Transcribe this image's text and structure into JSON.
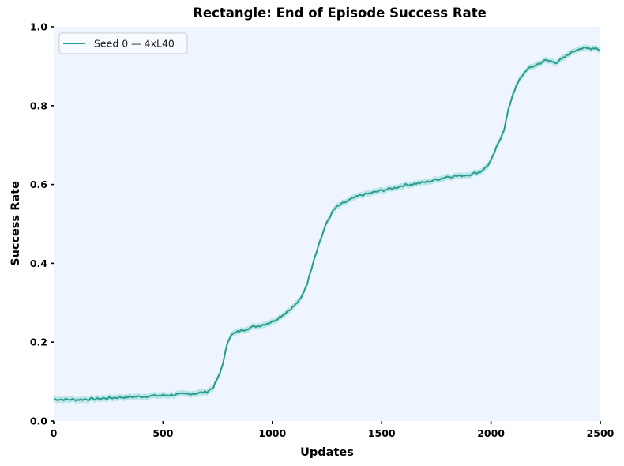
{
  "chart_data": {
    "type": "line",
    "title": "Rectangle: End of Episode Success Rate",
    "xlabel": "Updates",
    "ylabel": "Success Rate",
    "xlim": [
      0,
      2500
    ],
    "ylim": [
      0.0,
      1.0
    ],
    "xticks": [
      0,
      500,
      1000,
      1500,
      2000,
      2500
    ],
    "xtick_labels": [
      "0",
      "500",
      "1000",
      "1500",
      "2000",
      "2500"
    ],
    "yticks": [
      0.0,
      0.2,
      0.4,
      0.6,
      0.8,
      1.0
    ],
    "ytick_labels": [
      "0.0",
      "0.2",
      "0.4",
      "0.6",
      "0.8",
      "1.0"
    ],
    "grid": false,
    "legend_position": "upper left",
    "background_color": "#eff5fe",
    "series": [
      {
        "name": "Seed 0 — 4xL40",
        "color": "#2a9d8f",
        "band_color": "#8fd9d3",
        "x": [
          0,
          100,
          200,
          300,
          400,
          500,
          600,
          650,
          700,
          730,
          760,
          780,
          795,
          810,
          850,
          900,
          950,
          1000,
          1050,
          1100,
          1130,
          1160,
          1190,
          1220,
          1250,
          1280,
          1300,
          1350,
          1400,
          1450,
          1500,
          1550,
          1600,
          1650,
          1700,
          1750,
          1800,
          1850,
          1900,
          1950,
          1980,
          2000,
          2030,
          2060,
          2080,
          2100,
          2130,
          2160,
          2200,
          2250,
          2300,
          2330,
          2360,
          2400,
          2450,
          2480,
          2500
        ],
        "values": [
          0.055,
          0.054,
          0.056,
          0.06,
          0.062,
          0.065,
          0.068,
          0.07,
          0.074,
          0.085,
          0.12,
          0.16,
          0.2,
          0.218,
          0.228,
          0.237,
          0.243,
          0.252,
          0.27,
          0.292,
          0.31,
          0.35,
          0.41,
          0.46,
          0.505,
          0.535,
          0.545,
          0.56,
          0.572,
          0.578,
          0.585,
          0.59,
          0.598,
          0.602,
          0.606,
          0.612,
          0.62,
          0.622,
          0.625,
          0.632,
          0.645,
          0.66,
          0.7,
          0.74,
          0.79,
          0.83,
          0.865,
          0.89,
          0.902,
          0.915,
          0.91,
          0.92,
          0.932,
          0.945,
          0.945,
          0.947,
          0.94
        ]
      }
    ]
  }
}
